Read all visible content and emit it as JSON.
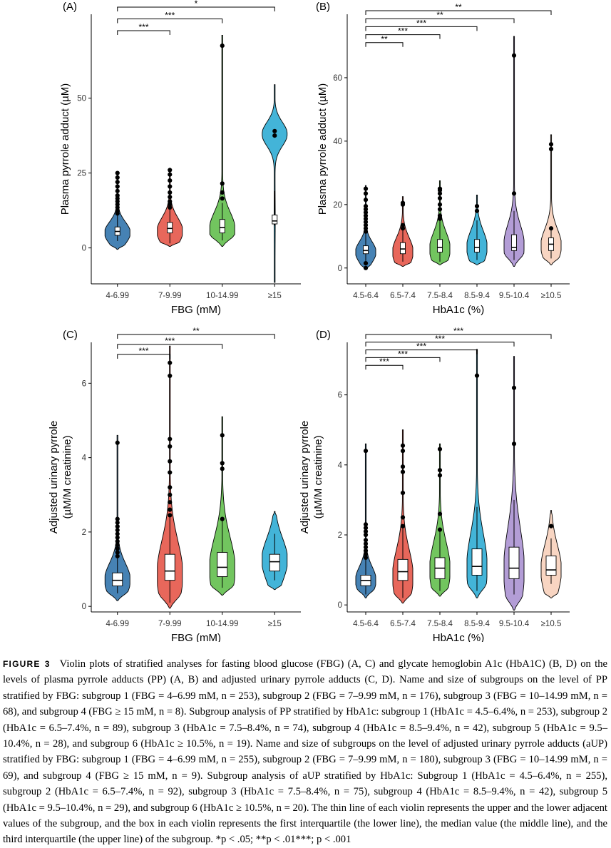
{
  "chart_data": [
    {
      "panel": "(A)",
      "type": "violin",
      "xlabel": "FBG (mM)",
      "ylabel": "Plasma pyrrole adduct (µM)",
      "categories": [
        "4-6.99",
        "7-9.99",
        "10-14.99",
        "≥15"
      ],
      "colors": [
        "#4682b4",
        "#e8675b",
        "#72c55f",
        "#43b4d8"
      ],
      "ylim": [
        -12,
        78
      ],
      "yticks": [
        0,
        25,
        50
      ],
      "violins": [
        {
          "min": -0.5,
          "max": 25.5,
          "q1": 4.2,
          "median": 5.5,
          "q3": 7.0,
          "whisker_low": 2.3,
          "whisker_high": 11.0,
          "peak": 5.0,
          "outliers": [
            11.5,
            12.5,
            13.5,
            14.5,
            15.5,
            16.5,
            17.5,
            19,
            20.5,
            22,
            23.5,
            25
          ]
        },
        {
          "min": 0.5,
          "max": 26.5,
          "q1": 5.0,
          "median": 6.5,
          "q3": 8.5,
          "whisker_low": 1.5,
          "whisker_high": 13.0,
          "peak": 5.5,
          "outliers": [
            13.5,
            14.5,
            15.5,
            17,
            18.5,
            20.5,
            22.5,
            24.5,
            26
          ]
        },
        {
          "min": 0.5,
          "max": 71,
          "q1": 5.0,
          "median": 6.8,
          "q3": 9.5,
          "whisker_low": 2.5,
          "whisker_high": 15.0,
          "peak": 6.0,
          "outliers": [
            16.5,
            18.5,
            21.5,
            67.5
          ]
        },
        {
          "min": -11.5,
          "max": 54.5,
          "q1": 8.0,
          "median": 9.0,
          "q3": 11.0,
          "whisker_low": 7.5,
          "whisker_high": 19.0,
          "peak": 38.0,
          "outliers": [
            37.5,
            39
          ]
        }
      ],
      "significance": [
        {
          "from": 0,
          "to": 1,
          "label": "***"
        },
        {
          "from": 0,
          "to": 2,
          "label": "***"
        },
        {
          "from": 0,
          "to": 3,
          "label": "*"
        }
      ]
    },
    {
      "panel": "(B)",
      "type": "violin",
      "xlabel": "HbA1c (%)",
      "ylabel": "Plasma pyrrole adduct (µM)",
      "categories": [
        "4.5-6.4",
        "6.5-7.4",
        "7.5-8.4",
        "8.5-9.4",
        "9.5-10.4",
        "≥10.5"
      ],
      "colors": [
        "#4682b4",
        "#e8675b",
        "#72c55f",
        "#43b4d8",
        "#b39dd6",
        "#f8d5c2"
      ],
      "ylim": [
        -5,
        80
      ],
      "yticks": [
        0,
        20,
        40,
        60
      ],
      "violins": [
        {
          "min": -0.5,
          "max": 26,
          "q1": 4.5,
          "median": 5.5,
          "q3": 7.0,
          "whisker_low": 2.0,
          "whisker_high": 11.0,
          "peak": 5.0,
          "outliers": [
            0,
            1.5,
            11.5,
            12.5,
            13.5,
            14.5,
            15.5,
            16.5,
            17.5,
            18.5,
            19.5,
            21.5,
            23.5,
            25
          ]
        },
        {
          "min": 0.5,
          "max": 22.5,
          "q1": 4.5,
          "median": 6.0,
          "q3": 8.0,
          "whisker_low": 2.0,
          "whisker_high": 12.0,
          "peak": 5.0,
          "outliers": [
            12.5,
            13.5,
            20,
            20.5
          ]
        },
        {
          "min": 1.0,
          "max": 27.5,
          "q1": 5.0,
          "median": 6.5,
          "q3": 9.0,
          "whisker_low": 2.0,
          "whisker_high": 15.0,
          "peak": 6.0,
          "outliers": [
            15.5,
            16.5,
            18.5,
            20,
            22,
            23.5,
            24.5,
            25
          ]
        },
        {
          "min": 1.0,
          "max": 23,
          "q1": 5.0,
          "median": 6.5,
          "q3": 9.0,
          "whisker_low": 2.5,
          "whisker_high": 15.0,
          "peak": 6.5,
          "outliers": [
            18,
            19.5
          ]
        },
        {
          "min": 0.5,
          "max": 73,
          "q1": 5.5,
          "median": 6.5,
          "q3": 10.5,
          "whisker_low": 2.5,
          "whisker_high": 18.0,
          "peak": 7.0,
          "outliers": [
            23.5,
            67
          ]
        },
        {
          "min": 1.0,
          "max": 42,
          "q1": 5.5,
          "median": 7.5,
          "q3": 9.5,
          "whisker_low": 3.0,
          "whisker_high": 12.0,
          "peak": 7.0,
          "outliers": [
            12.5,
            37.5,
            39
          ]
        }
      ],
      "significance": [
        {
          "from": 0,
          "to": 1,
          "label": "**"
        },
        {
          "from": 0,
          "to": 2,
          "label": "***"
        },
        {
          "from": 0,
          "to": 3,
          "label": "***"
        },
        {
          "from": 0,
          "to": 4,
          "label": "**"
        },
        {
          "from": 0,
          "to": 5,
          "label": "**"
        }
      ]
    },
    {
      "panel": "(C)",
      "type": "violin",
      "xlabel": "FBG (mM)",
      "ylabel": [
        "Adjusted urinary pyrrole",
        "(µM/M creatinine)"
      ],
      "categories": [
        "4-6.99",
        "7-9.99",
        "10-14.99",
        "≥15"
      ],
      "colors": [
        "#4682b4",
        "#e8675b",
        "#72c55f",
        "#43b4d8"
      ],
      "ylim": [
        -0.15,
        7.1
      ],
      "yticks": [
        0,
        2,
        4,
        6
      ],
      "violins": [
        {
          "min": 0.15,
          "max": 4.6,
          "q1": 0.55,
          "median": 0.7,
          "q3": 0.9,
          "whisker_low": 0.35,
          "whisker_high": 1.3,
          "peak": 0.7,
          "outliers": [
            1.35,
            1.45,
            1.55,
            1.65,
            1.75,
            1.85,
            1.95,
            2.05,
            2.15,
            2.25,
            2.35,
            4.4
          ]
        },
        {
          "min": -0.05,
          "max": 7.0,
          "q1": 0.7,
          "median": 0.95,
          "q3": 1.4,
          "whisker_low": 0.1,
          "whisker_high": 2.4,
          "peak": 0.85,
          "outliers": [
            2.45,
            2.6,
            2.8,
            3.0,
            3.2,
            3.6,
            3.9,
            4.3,
            4.5,
            6.2,
            6.55
          ]
        },
        {
          "min": 0.3,
          "max": 5.1,
          "q1": 0.8,
          "median": 1.05,
          "q3": 1.45,
          "whisker_low": 0.5,
          "whisker_high": 2.3,
          "peak": 1.0,
          "outliers": [
            2.35,
            3.7,
            3.85,
            4.6
          ]
        },
        {
          "min": 0.45,
          "max": 2.55,
          "q1": 0.95,
          "median": 1.2,
          "q3": 1.4,
          "whisker_low": 0.7,
          "whisker_high": 1.95,
          "peak": 1.25,
          "outliers": []
        }
      ],
      "significance": [
        {
          "from": 0,
          "to": 1,
          "label": "***"
        },
        {
          "from": 0,
          "to": 2,
          "label": "***"
        },
        {
          "from": 0,
          "to": 3,
          "label": "**"
        }
      ]
    },
    {
      "panel": "(D)",
      "type": "violin",
      "xlabel": "HbA1c (%)",
      "ylabel": [
        "Adjusted urinary pyrrole",
        "(µM/M creatinine)"
      ],
      "categories": [
        "4.5-6.4",
        "6.5-7.4",
        "7.5-8.4",
        "8.5-9.4",
        "9.5-10.4",
        "≥10.5"
      ],
      "colors": [
        "#4682b4",
        "#e8675b",
        "#72c55f",
        "#43b4d8",
        "#b39dd6",
        "#f8d5c2"
      ],
      "ylim": [
        -0.2,
        7.5
      ],
      "yticks": [
        0,
        2,
        4,
        6
      ],
      "violins": [
        {
          "min": 0.2,
          "max": 4.6,
          "q1": 0.55,
          "median": 0.7,
          "q3": 0.85,
          "whisker_low": 0.3,
          "whisker_high": 1.3,
          "peak": 0.7,
          "outliers": [
            1.35,
            1.45,
            1.55,
            1.65,
            1.75,
            1.85,
            2.0,
            2.1,
            2.2,
            2.3,
            4.4
          ]
        },
        {
          "min": 0.05,
          "max": 5.0,
          "q1": 0.7,
          "median": 0.95,
          "q3": 1.3,
          "whisker_low": 0.2,
          "whisker_high": 2.2,
          "peak": 0.8,
          "outliers": [
            2.25,
            2.5,
            3.2,
            3.8,
            3.95,
            4.4,
            4.55
          ]
        },
        {
          "min": 0.25,
          "max": 4.6,
          "q1": 0.75,
          "median": 1.05,
          "q3": 1.35,
          "whisker_low": 0.4,
          "whisker_high": 2.1,
          "peak": 1.0,
          "outliers": [
            2.15,
            2.6,
            3.7,
            3.85,
            4.45
          ]
        },
        {
          "min": 0.2,
          "max": 7.3,
          "q1": 0.85,
          "median": 1.1,
          "q3": 1.6,
          "whisker_low": 0.4,
          "whisker_high": 2.8,
          "peak": 1.05,
          "outliers": [
            6.55
          ]
        },
        {
          "min": -0.15,
          "max": 7.1,
          "q1": 0.75,
          "median": 1.05,
          "q3": 1.65,
          "whisker_low": 0.3,
          "whisker_high": 3.0,
          "peak": 1.0,
          "outliers": [
            4.6,
            6.2
          ]
        },
        {
          "min": 0.2,
          "max": 2.7,
          "q1": 0.85,
          "median": 1.0,
          "q3": 1.4,
          "whisker_low": 0.6,
          "whisker_high": 1.9,
          "peak": 1.0,
          "outliers": [
            2.25
          ]
        }
      ],
      "significance": [
        {
          "from": 0,
          "to": 1,
          "label": "***"
        },
        {
          "from": 0,
          "to": 2,
          "label": "***"
        },
        {
          "from": 0,
          "to": 3,
          "label": "***"
        },
        {
          "from": 0,
          "to": 4,
          "label": "***"
        },
        {
          "from": 0,
          "to": 5,
          "label": "***"
        }
      ]
    }
  ],
  "caption": {
    "label": "FIGURE 3",
    "text": "Violin plots of stratified analyses for fasting blood glucose (FBG) (A, C) and glycate hemoglobin A1c (HbA1C) (B, D) on the levels of plasma pyrrole adducts (PP) (A, B) and adjusted urinary pyrrole adducts (C, D). Name and size of subgroups on the level of PP stratified by FBG: subgroup 1 (FBG = 4–6.99 mM, n = 253), subgroup 2 (FBG = 7–9.99 mM, n = 176), subgroup 3 (FBG = 10–14.99 mM, n = 68), and subgroup 4 (FBG ≥ 15 mM, n = 8). Subgroup analysis of PP stratified by HbA1c: subgroup 1 (HbA1c = 4.5–6.4%, n = 253), subgroup 2 (HbA1c = 6.5–7.4%, n = 89), subgroup 3 (HbA1c = 7.5–8.4%, n = 74), subgroup 4 (HbA1c = 8.5–9.4%, n = 42), subgroup 5 (HbA1c = 9.5–10.4%, n = 28), and subgroup 6 (HbA1c ≥ 10.5%, n = 19). Name and size of subgroups on the level of adjusted urinary pyrrole adducts (aUP) stratified by FBG: subgroup 1 (FBG = 4–6.99 mM, n = 255), subgroup 2 (FBG = 7–9.99 mM, n = 180), subgroup 3 (FBG = 10–14.99 mM, n = 69), and subgroup 4 (FBG ≥ 15 mM, n = 9). Subgroup analysis of aUP stratified by HbA1c: Subgroup 1 (HbA1c = 4.5–6.4%, n = 255), subgroup 2 (HbA1c = 6.5–7.4%, n = 92), subgroup 3 (HbA1c = 7.5–8.4%, n = 75), subgroup 4 (HbA1c = 8.5–9.4%, n = 42), subgroup 5 (HbA1c = 9.5–10.4%, n = 29), and subgroup 6 (HbA1c ≥ 10.5%, n = 20). The thin line of each violin represents the upper and the lower adjacent values of the subgroup, and the box in each violin represents the first interquartile (the lower line), the median value (the middle line), and the third interquartile (the upper line) of the subgroup. *p < .05; **p < .01***; p < .001"
  }
}
